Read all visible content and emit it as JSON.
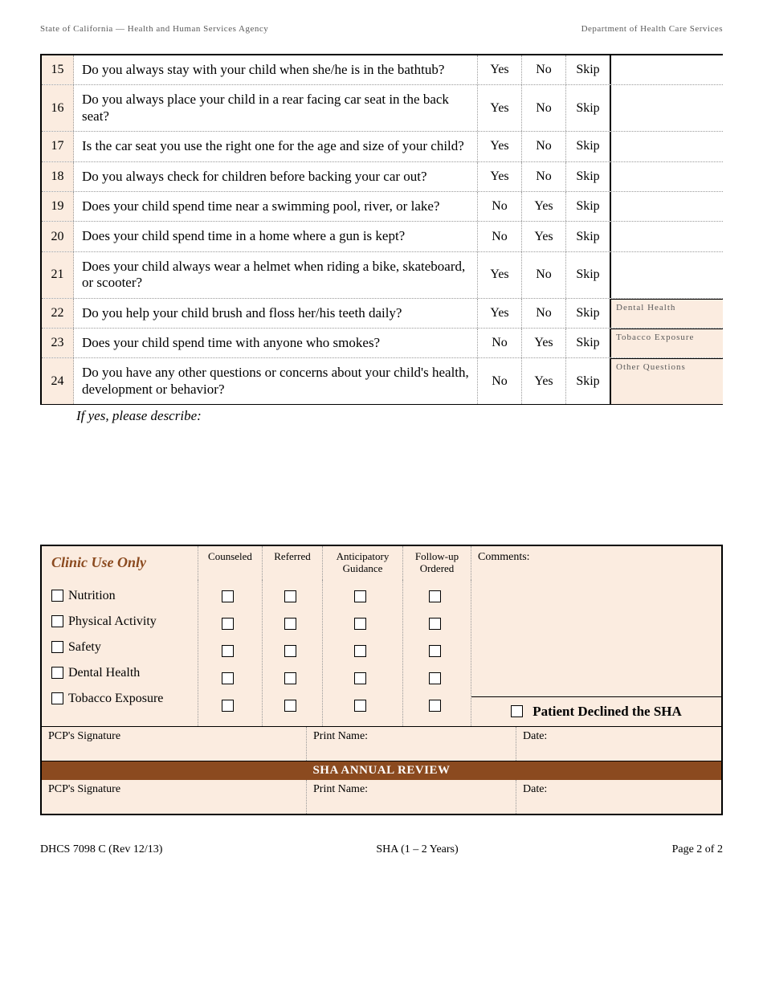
{
  "header": {
    "left": "State of California — Health and Human Services Agency",
    "right": "Department of Health Care Services"
  },
  "questions": [
    {
      "num": "15",
      "text": "Do you always stay with your child when she/he is in the bathtub?",
      "o1": "Yes",
      "o2": "No",
      "o3": "Skip",
      "cat": ""
    },
    {
      "num": "16",
      "text": "Do you always place your child in a rear facing car seat in the back seat?",
      "o1": "Yes",
      "o2": "No",
      "o3": "Skip",
      "cat": ""
    },
    {
      "num": "17",
      "text": "Is the car seat you use the right one for the age and size of your child?",
      "o1": "Yes",
      "o2": "No",
      "o3": "Skip",
      "cat": ""
    },
    {
      "num": "18",
      "text": "Do you always check for children before backing your car out?",
      "o1": "Yes",
      "o2": "No",
      "o3": "Skip",
      "cat": ""
    },
    {
      "num": "19",
      "text": "Does your child spend time near a swimming pool, river, or lake?",
      "o1": "No",
      "o2": "Yes",
      "o3": "Skip",
      "cat": ""
    },
    {
      "num": "20",
      "text": "Does your child spend time in a home where a gun is kept?",
      "o1": "No",
      "o2": "Yes",
      "o3": "Skip",
      "cat": ""
    },
    {
      "num": "21",
      "text": "Does your child always wear a helmet when riding a bike, skateboard, or scooter?",
      "o1": "Yes",
      "o2": "No",
      "o3": "Skip",
      "cat": ""
    },
    {
      "num": "22",
      "text": "Do you help your child brush and floss her/his teeth daily?",
      "o1": "Yes",
      "o2": "No",
      "o3": "Skip",
      "cat": "Dental Health"
    },
    {
      "num": "23",
      "text": "Does your child spend time with anyone who smokes?",
      "o1": "No",
      "o2": "Yes",
      "o3": "Skip",
      "cat": "Tobacco Exposure"
    },
    {
      "num": "24",
      "text": "Do you have any other questions or concerns about your child's health, development or behavior?",
      "o1": "No",
      "o2": "Yes",
      "o3": "Skip",
      "cat": "Other Questions"
    }
  ],
  "describe_label": "If yes, please describe:",
  "clinic": {
    "title": "Clinic Use Only",
    "cols": {
      "counseled": "Counseled",
      "referred": "Referred",
      "anticipatory": "Anticipatory Guidance",
      "followup": "Follow-up Ordered",
      "comments": "Comments:"
    },
    "items": [
      "Nutrition",
      "Physical Activity",
      "Safety",
      "Dental Health",
      "Tobacco Exposure"
    ],
    "declined": "Patient Declined the SHA",
    "sig": {
      "pcp": "PCP's Signature",
      "print": "Print Name:",
      "date": "Date:"
    },
    "annual": "SHA ANNUAL REVIEW"
  },
  "footer": {
    "left": "DHCS 7098 C (Rev 12/13)",
    "center": "SHA (1 – 2 Years)",
    "right": "Page 2 of 2"
  },
  "colors": {
    "cream": "#fbece0",
    "brown": "#8b4a1f"
  }
}
